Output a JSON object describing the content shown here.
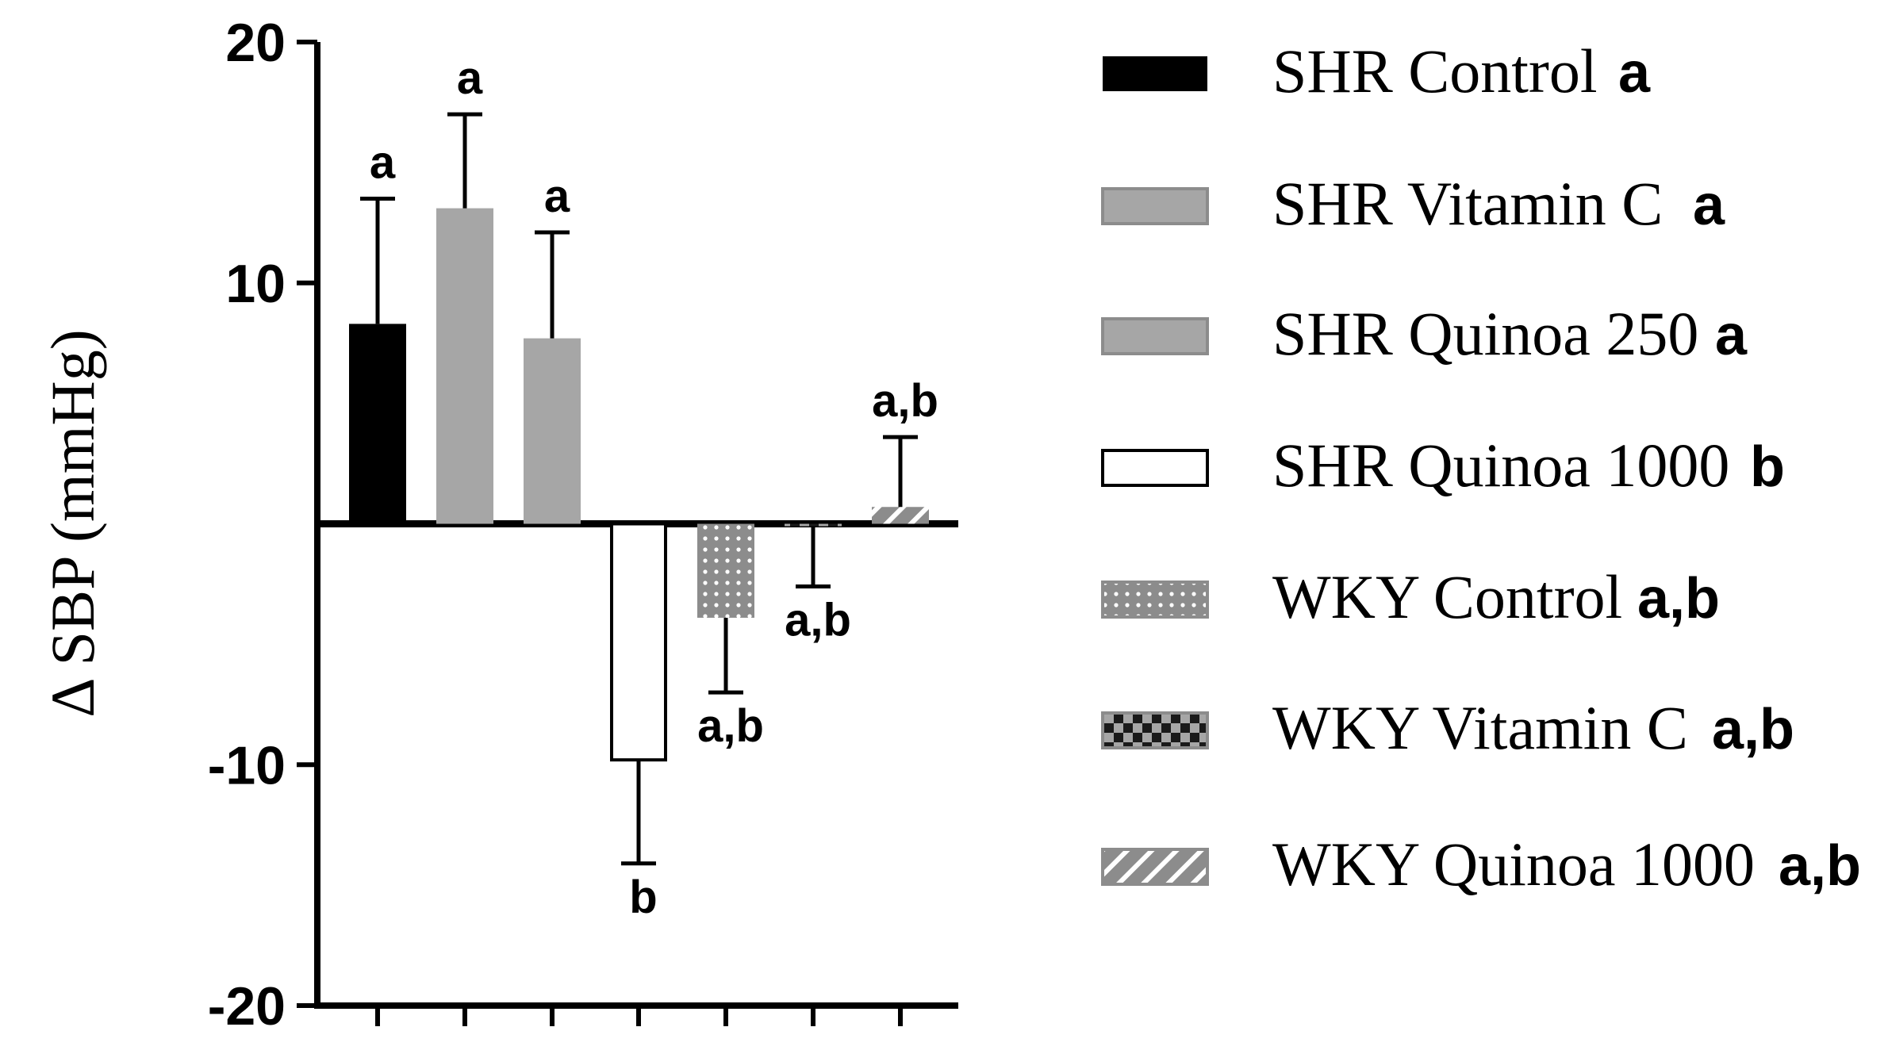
{
  "chart_data": {
    "type": "bar",
    "ylabel": "Δ SBP (mmHg)",
    "ylim": [
      -20,
      20
    ],
    "yticks": [
      20,
      10,
      -10,
      -20
    ],
    "ytick_labels": [
      "20",
      "10",
      "-10",
      "-20"
    ],
    "series": [
      {
        "name": "SHR Control",
        "value": 8.3,
        "error": 5.2,
        "error_dir": "up",
        "sig": "a",
        "legend_sig": "a",
        "fill": "solid-black"
      },
      {
        "name": "SHR Vitamin C",
        "value": 13.1,
        "error": 3.9,
        "error_dir": "up",
        "sig": "a",
        "legend_sig": "a",
        "fill": "solid-gray"
      },
      {
        "name": "SHR Quinoa 250",
        "value": 7.7,
        "error": 4.4,
        "error_dir": "up",
        "sig": "a",
        "legend_sig": "a",
        "fill": "solid-gray"
      },
      {
        "name": "SHR Quinoa 1000",
        "value": -9.8,
        "error": 4.3,
        "error_dir": "down",
        "sig": "b",
        "legend_sig": "b",
        "fill": "white"
      },
      {
        "name": "WKY Control",
        "value": -3.9,
        "error": 3.1,
        "error_dir": "down",
        "sig": "a,b",
        "legend_sig": "a,b",
        "fill": "dotted"
      },
      {
        "name": "WKY Vitamin C",
        "value": -0.1,
        "error": 2.5,
        "error_dir": "down",
        "sig": "a,b",
        "legend_sig": "a,b",
        "fill": "checker"
      },
      {
        "name": "WKY Quinoa 1000",
        "value": 0.7,
        "error": 2.9,
        "error_dir": "up",
        "sig": "a,b",
        "legend_sig": "a,b",
        "fill": "hatched"
      }
    ],
    "colors": {
      "black": "#000000",
      "gray": "#a6a6a6",
      "pattern_gray": "#8c8c8c"
    }
  }
}
